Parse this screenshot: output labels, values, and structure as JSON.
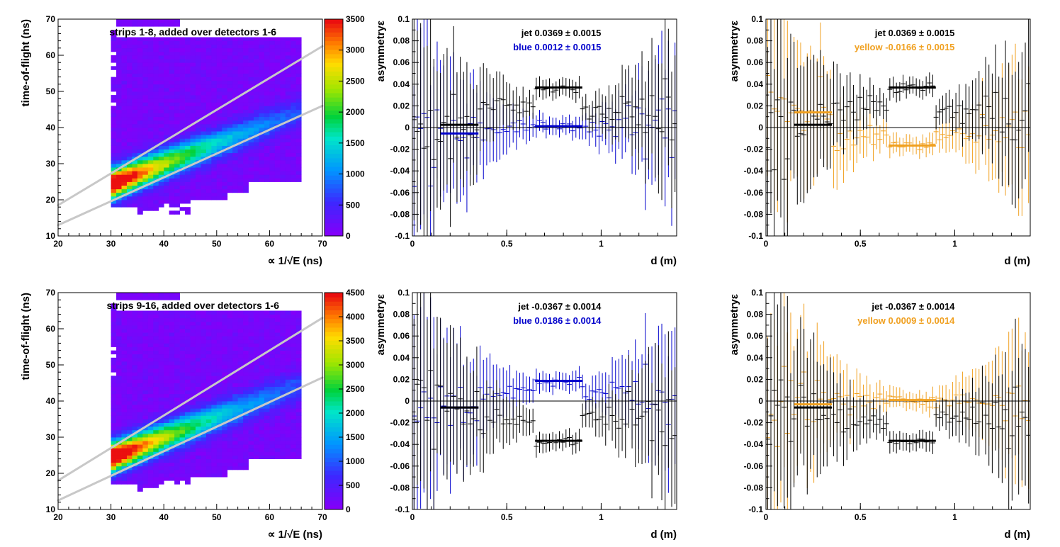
{
  "colors": {
    "jet": "#000000",
    "blue": "#0000cc",
    "yellow": "#f0a020",
    "band": "#c8c8c8"
  },
  "chart_data": [
    {
      "id": "hist-strips-1-8",
      "type": "heatmap",
      "title": "strips 1-8, added over detectors 1-6",
      "xlabel": "∝ 1/√E (ns)",
      "ylabel": "time-of-flight (ns)",
      "xlim": [
        20,
        70
      ],
      "ylim": [
        10,
        70
      ],
      "x_ticks": [
        "20",
        "30",
        "40",
        "50",
        "60",
        "70"
      ],
      "y_ticks": [
        "10",
        "20",
        "30",
        "40",
        "50",
        "60",
        "70"
      ],
      "colorbar": {
        "range": [
          0,
          3500
        ],
        "ticks": [
          "0",
          "500",
          "1000",
          "1500",
          "2000",
          "2500",
          "3000",
          "3500"
        ]
      },
      "peak": {
        "x": 34,
        "y": 26.5,
        "value": 3500
      },
      "band_lines": [
        {
          "x": [
            20,
            70
          ],
          "y": [
            18.5,
            62.5
          ]
        },
        {
          "x": [
            20,
            70
          ],
          "y": [
            13,
            46
          ]
        }
      ]
    },
    {
      "id": "asym-1-8-blue",
      "type": "scatter",
      "xlabel": "d (m)",
      "ylabel": "asymmetryε",
      "xlim": [
        0,
        1.4
      ],
      "ylim": [
        -0.1,
        0.1
      ],
      "x_ticks": [
        "0",
        "0.5",
        "1"
      ],
      "y_ticks": [
        "-0.1",
        "-0.08",
        "-0.06",
        "-0.04",
        "-0.02",
        "0",
        "0.02",
        "0.04",
        "0.06",
        "0.08",
        "0.1"
      ],
      "legend": [
        {
          "label": "jet",
          "value": "0.0369 ± 0.0015"
        },
        {
          "label": "blue",
          "value": "0.0012 ± 0.0015"
        }
      ],
      "series": [
        {
          "name": "jet",
          "color_key": "jet",
          "fits": [
            {
              "x": [
                0.15,
                0.35
              ],
              "y": 0.0025
            },
            {
              "x": [
                0.65,
                0.9
              ],
              "y": 0.0369
            }
          ]
        },
        {
          "name": "blue",
          "color_key": "blue",
          "fits": [
            {
              "x": [
                0.15,
                0.35
              ],
              "y": -0.0055
            },
            {
              "x": [
                0.65,
                0.9
              ],
              "y": 0.0012
            }
          ]
        }
      ]
    },
    {
      "id": "asym-1-8-yellow",
      "type": "scatter",
      "xlabel": "d (m)",
      "ylabel": "asymmetryε",
      "xlim": [
        0,
        1.4
      ],
      "ylim": [
        -0.1,
        0.1
      ],
      "x_ticks": [
        "0",
        "0.5",
        "1"
      ],
      "y_ticks": [
        "-0.1",
        "-0.08",
        "-0.06",
        "-0.04",
        "-0.02",
        "0",
        "0.02",
        "0.04",
        "0.06",
        "0.08",
        "0.1"
      ],
      "legend": [
        {
          "label": "jet",
          "value": "0.0369 ± 0.0015"
        },
        {
          "label": "yellow",
          "value": "-0.0166 ± 0.0015"
        }
      ],
      "series": [
        {
          "name": "jet",
          "color_key": "jet",
          "fits": [
            {
              "x": [
                0.15,
                0.35
              ],
              "y": 0.0025
            },
            {
              "x": [
                0.65,
                0.9
              ],
              "y": 0.0369
            }
          ]
        },
        {
          "name": "yellow",
          "color_key": "yellow",
          "fits": [
            {
              "x": [
                0.15,
                0.35
              ],
              "y": 0.014
            },
            {
              "x": [
                0.65,
                0.9
              ],
              "y": -0.0166
            }
          ]
        }
      ]
    },
    {
      "id": "hist-strips-9-16",
      "type": "heatmap",
      "title": "strips 9-16, added over detectors 1-6",
      "xlabel": "∝ 1/√E (ns)",
      "ylabel": "time-of-flight (ns)",
      "xlim": [
        20,
        70
      ],
      "ylim": [
        10,
        70
      ],
      "x_ticks": [
        "20",
        "30",
        "40",
        "50",
        "60",
        "70"
      ],
      "y_ticks": [
        "10",
        "20",
        "30",
        "40",
        "50",
        "60",
        "70"
      ],
      "colorbar": {
        "range": [
          0,
          4500
        ],
        "ticks": [
          "0",
          "500",
          "1000",
          "1500",
          "2000",
          "2500",
          "3000",
          "3500",
          "4000",
          "4500"
        ]
      },
      "peak": {
        "x": 34.5,
        "y": 26,
        "value": 4500
      },
      "band_lines": [
        {
          "x": [
            20,
            70
          ],
          "y": [
            18,
            63
          ]
        },
        {
          "x": [
            20,
            70
          ],
          "y": [
            12.5,
            46.5
          ]
        }
      ]
    },
    {
      "id": "asym-9-16-blue",
      "type": "scatter",
      "xlabel": "d (m)",
      "ylabel": "asymmetryε",
      "xlim": [
        0,
        1.4
      ],
      "ylim": [
        -0.1,
        0.1
      ],
      "x_ticks": [
        "0",
        "0.5",
        "1"
      ],
      "y_ticks": [
        "-0.1",
        "-0.08",
        "-0.06",
        "-0.04",
        "-0.02",
        "0",
        "0.02",
        "0.04",
        "0.06",
        "0.08",
        "0.1"
      ],
      "legend": [
        {
          "label": "jet",
          "value": "-0.0367 ± 0.0014"
        },
        {
          "label": "blue",
          "value": "0.0186 ± 0.0014"
        }
      ],
      "series": [
        {
          "name": "jet",
          "color_key": "jet",
          "fits": [
            {
              "x": [
                0.15,
                0.35
              ],
              "y": -0.006
            },
            {
              "x": [
                0.65,
                0.9
              ],
              "y": -0.0367
            }
          ]
        },
        {
          "name": "blue",
          "color_key": "blue",
          "fits": [
            {
              "x": [
                0.15,
                0.35
              ],
              "y": -0.006
            },
            {
              "x": [
                0.65,
                0.9
              ],
              "y": 0.0186
            }
          ]
        }
      ]
    },
    {
      "id": "asym-9-16-yellow",
      "type": "scatter",
      "xlabel": "d (m)",
      "ylabel": "asymmetryε",
      "xlim": [
        0,
        1.4
      ],
      "ylim": [
        -0.1,
        0.1
      ],
      "x_ticks": [
        "0",
        "0.5",
        "1"
      ],
      "y_ticks": [
        "-0.1",
        "-0.08",
        "-0.06",
        "-0.04",
        "-0.02",
        "0",
        "0.02",
        "0.04",
        "0.06",
        "0.08",
        "0.1"
      ],
      "legend": [
        {
          "label": "jet",
          "value": "-0.0367 ± 0.0014"
        },
        {
          "label": "yellow",
          "value": "0.0009 ± 0.0014"
        }
      ],
      "series": [
        {
          "name": "jet",
          "color_key": "jet",
          "fits": [
            {
              "x": [
                0.15,
                0.35
              ],
              "y": -0.006
            },
            {
              "x": [
                0.65,
                0.9
              ],
              "y": -0.0367
            }
          ]
        },
        {
          "name": "yellow",
          "color_key": "yellow",
          "fits": [
            {
              "x": [
                0.15,
                0.35
              ],
              "y": -0.003
            },
            {
              "x": [
                0.65,
                0.9
              ],
              "y": 0.0009
            }
          ]
        }
      ]
    }
  ]
}
